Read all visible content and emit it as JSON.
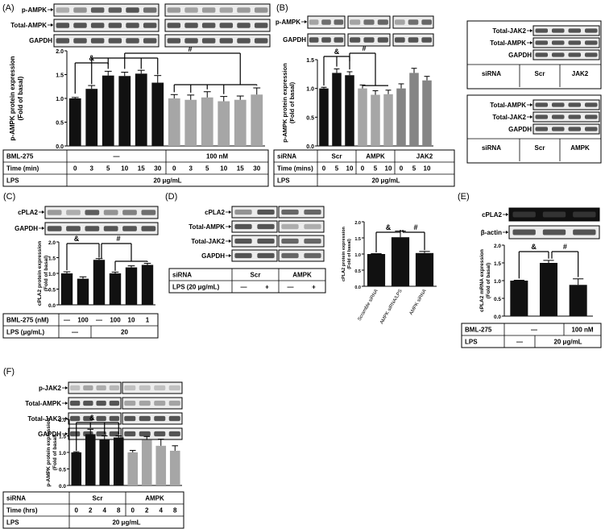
{
  "figure": {
    "colors": {
      "black": "#111111",
      "gray": "#a6a6a6",
      "darkgray": "#858585",
      "blot": "#3a3a3a"
    }
  },
  "panels": [
    {
      "id": "A",
      "label": "(A)",
      "blots": [
        "p-AMPK",
        "Total-AMPK",
        "GAPDH"
      ],
      "row_labels": [
        "BML-275",
        "Time (min)",
        "LPS"
      ],
      "groups": [
        "—",
        "100 nM"
      ],
      "time_ticks": [
        "0",
        "3",
        "5",
        "10",
        "15",
        "30",
        "0",
        "3",
        "5",
        "10",
        "15",
        "30"
      ],
      "lps": "20 μg/mL",
      "sig": [
        "&",
        "#"
      ],
      "chart_data": {
        "type": "bar",
        "ylabel": "p-AMPK protein expression (Fold of basal)",
        "ylim": [
          0,
          2.0
        ],
        "yticks": [
          "0.0",
          "0.5",
          "1.0",
          "1.5",
          "2.0"
        ],
        "values": [
          1.0,
          1.2,
          1.48,
          1.47,
          1.52,
          1.33,
          1.0,
          0.97,
          1.02,
          0.94,
          0.97,
          1.08
        ],
        "errors": [
          0.02,
          0.07,
          0.09,
          0.08,
          0.07,
          0.15,
          0.08,
          0.1,
          0.12,
          0.1,
          0.08,
          0.14
        ],
        "colors": [
          "black",
          "black",
          "black",
          "black",
          "black",
          "black",
          "gray",
          "gray",
          "gray",
          "gray",
          "gray",
          "gray"
        ]
      }
    },
    {
      "id": "B",
      "label": "(B)",
      "blots": [
        "p-AMPK",
        "GAPDH"
      ],
      "row_labels": [
        "siRNA",
        "Time (mins)",
        "LPS"
      ],
      "groups": [
        "Scr",
        "AMPK",
        "JAK2"
      ],
      "time_ticks": [
        "0",
        "5",
        "10",
        "0",
        "5",
        "10",
        "0",
        "5",
        "10"
      ],
      "lps": "20 μg/mL",
      "sig": [
        "&",
        "#"
      ],
      "chart_data": {
        "type": "bar",
        "ylabel": "p-AMPK protein expression (Fold of basal)",
        "ylim": [
          0,
          1.5
        ],
        "yticks": [
          "0.0",
          "0.5",
          "1.0",
          "1.5"
        ],
        "values": [
          1.0,
          1.27,
          1.23,
          1.0,
          0.89,
          0.9,
          1.0,
          1.27,
          1.14
        ],
        "errors": [
          0.02,
          0.07,
          0.06,
          0.06,
          0.07,
          0.07,
          0.08,
          0.08,
          0.07
        ],
        "colors": [
          "black",
          "black",
          "black",
          "gray",
          "gray",
          "gray",
          "darkgray",
          "darkgray",
          "darkgray"
        ]
      }
    },
    {
      "id": "B2",
      "blots": [
        "Total-JAK2",
        "Total-AMPK",
        "GAPDH"
      ],
      "row_label": "siRNA",
      "groups": [
        "Scr",
        "JAK2"
      ]
    },
    {
      "id": "B3",
      "blots": [
        "Total-AMPK",
        "Total-JAK2",
        "GAPDH"
      ],
      "row_label": "siRNA",
      "groups": [
        "Scr",
        "AMPK"
      ]
    },
    {
      "id": "C",
      "label": "(C)",
      "blots": [
        "cPLA2",
        "GAPDH"
      ],
      "row_labels": [
        "BML-275 (nM)",
        "LPS (μg/mL)"
      ],
      "bml": [
        "—",
        "100",
        "—",
        "100",
        "10",
        "1"
      ],
      "lps_cells": [
        "—",
        "20"
      ],
      "sig": [
        "&",
        "#"
      ],
      "chart_data": {
        "type": "bar",
        "ylabel": "cPLA2 protein expression (Fold of basal)",
        "ylim": [
          0,
          2.0
        ],
        "yticks": [
          "0.0",
          "0.5",
          "1.0",
          "1.5",
          "2.0"
        ],
        "values": [
          1.0,
          0.83,
          1.43,
          1.0,
          1.19,
          1.27
        ],
        "errors": [
          0.05,
          0.06,
          0.04,
          0.04,
          0.05,
          0.05
        ],
        "colors": [
          "black",
          "black",
          "black",
          "black",
          "black",
          "black"
        ]
      }
    },
    {
      "id": "D",
      "label": "(D)",
      "blots": [
        "cPLA2",
        "Total-AMPK",
        "Total-JAK2",
        "GAPDH"
      ],
      "row_labels": [
        "siRNA",
        "LPS (20 μg/mL)"
      ],
      "groups": [
        "Scr",
        "AMPK"
      ],
      "lps_signs": [
        "—",
        "+",
        "—",
        "+"
      ],
      "sig": [
        "&",
        "#"
      ],
      "chart_data": {
        "type": "bar",
        "ylabel": "cPLA2 protein expression (Fold of basal)",
        "ylim": [
          0,
          2.0
        ],
        "yticks": [
          "0.0",
          "0.5",
          "1.0",
          "1.5",
          "2.0"
        ],
        "categories": [
          "Scramble siRNA",
          "AMPK siRNA/LPS",
          "AMPK siRNA"
        ],
        "values": [
          1.0,
          1.52,
          1.03
        ],
        "errors": [
          0.01,
          0.19,
          0.05
        ],
        "colors": [
          "black",
          "black",
          "black"
        ]
      }
    },
    {
      "id": "E",
      "label": "(E)",
      "blots": [
        "cPLA2",
        "β-actin"
      ],
      "row_labels": [
        "BML-275",
        "LPS"
      ],
      "bml": [
        "—",
        "100 nM"
      ],
      "lps_cells": [
        "—",
        "20 μg/mL"
      ],
      "sig": [
        "&",
        "#"
      ],
      "chart_data": {
        "type": "bar",
        "ylabel": "cPLA2 mRNA expression (Fold of basal)",
        "ylim": [
          0,
          2.0
        ],
        "yticks": [
          "0.0",
          "0.5",
          "1.0",
          "1.5",
          "2.0"
        ],
        "values": [
          1.0,
          1.5,
          0.88
        ],
        "errors": [
          0.01,
          0.07,
          0.17
        ],
        "colors": [
          "black",
          "black",
          "black"
        ]
      }
    },
    {
      "id": "F",
      "label": "(F)",
      "blots": [
        "p-JAK2",
        "Total-AMPK",
        "Total-JAK2",
        "GAPDH"
      ],
      "row_labels": [
        "siRNA",
        "Time (hrs)",
        "LPS"
      ],
      "groups": [
        "Scr",
        "AMPK"
      ],
      "time_ticks": [
        "0",
        "2",
        "4",
        "8",
        "0",
        "2",
        "4",
        "8"
      ],
      "lps": "20 μg/mL",
      "sig": [
        "&"
      ],
      "chart_data": {
        "type": "bar",
        "ylabel": "p-AMPK protein expression (Fold of basal)",
        "ylim": [
          0,
          2.0
        ],
        "yticks": [
          "0.0",
          "0.5",
          "1.0",
          "1.5",
          "2.0"
        ],
        "values": [
          1.0,
          1.55,
          1.4,
          1.45,
          1.0,
          1.38,
          1.2,
          1.05
        ],
        "errors": [
          0.02,
          0.15,
          0.1,
          0.05,
          0.06,
          0.1,
          0.2,
          0.15
        ],
        "colors": [
          "black",
          "black",
          "black",
          "black",
          "gray",
          "gray",
          "gray",
          "gray"
        ]
      }
    }
  ]
}
